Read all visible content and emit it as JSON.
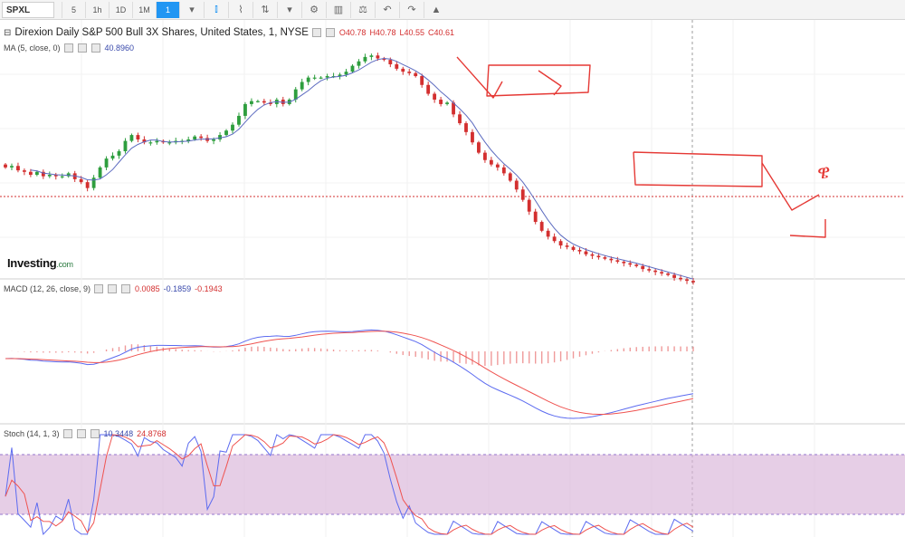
{
  "toolbar": {
    "symbol": "SPXL",
    "intervals": [
      "5",
      "1h",
      "1D",
      "1M",
      "1"
    ],
    "active_interval": "1",
    "icons": [
      "chevron-down-icon",
      "candlestick-icon",
      "area-chart-icon",
      "compare-icon",
      "chevron-down-icon",
      "gear-icon",
      "indicators-icon",
      "balance-icon",
      "undo-icon",
      "redo-icon",
      "bell-icon"
    ]
  },
  "price_legend": {
    "title": "Direxion Daily S&P 500 Bull 3X Shares, United States, 1, NYSE",
    "open": "O40.78",
    "high": "H40.78",
    "low": "L40.55",
    "close": "C40.61",
    "ma_label": "MA (5, close, 0)",
    "ma_value": "40.8960"
  },
  "macd_legend": {
    "label": "MACD (12, 26, close, 9)",
    "hist": "0.0085",
    "macd": "-0.1859",
    "signal": "-0.1943"
  },
  "stoch_legend": {
    "label": "Stoch (14, 1, 3)",
    "k": "10.3448",
    "d": "24.8768"
  },
  "logo": {
    "main": "Investing",
    "suffix": ".com"
  },
  "annotation": {
    "text": "ዌ"
  },
  "colors": {
    "up": "#2e9e3e",
    "down": "#d32f2f",
    "ma": "#5c6bc0",
    "macd_line": "#5c6bf0",
    "signal_line": "#ef5350",
    "hist": "#ef9a9a",
    "stoch_band": "#d8b4d8",
    "annotation": "#e53935",
    "accent": "#2196f3"
  },
  "chart_data": [
    {
      "type": "candlestick",
      "series": [
        {
          "name": "SPXL",
          "close_values": [
            41.02,
            41.03,
            41.0,
            40.99,
            40.97,
            40.99,
            40.96,
            40.97,
            40.96,
            40.96,
            40.98,
            40.94,
            40.92,
            40.88,
            40.95,
            41.02,
            41.08,
            41.1,
            41.13,
            41.2,
            41.24,
            41.21,
            41.19,
            41.19,
            41.2,
            41.19,
            41.19,
            41.2,
            41.2,
            41.21,
            41.23,
            41.22,
            41.2,
            41.21,
            41.24,
            41.27,
            41.31,
            41.37,
            41.45,
            41.47,
            41.47,
            41.46,
            41.45,
            41.48,
            41.45,
            41.48,
            41.55,
            41.6,
            41.63,
            41.63,
            41.63,
            41.64,
            41.64,
            41.65,
            41.67,
            41.71,
            41.74,
            41.77,
            41.78,
            41.76,
            41.75,
            41.72,
            41.69,
            41.67,
            41.66,
            41.64,
            41.58,
            41.52,
            41.48,
            41.45,
            41.46,
            41.38,
            41.32,
            41.26,
            41.19,
            41.12,
            41.07,
            41.04,
            41.02,
            40.98,
            40.93,
            40.87,
            40.8,
            40.72,
            40.65,
            40.59,
            40.55,
            40.52,
            40.49,
            40.48,
            40.46,
            40.45,
            40.43,
            40.42,
            40.41,
            40.4,
            40.39,
            40.38,
            40.37,
            40.36,
            40.35,
            40.33,
            40.32,
            40.31,
            40.3,
            40.29,
            40.27,
            40.26,
            40.25,
            40.24
          ]
        }
      ],
      "ylim": [
        40.3,
        41.8
      ]
    },
    {
      "type": "line",
      "series": [
        {
          "name": "MACD (12, 26, close, 9)"
        }
      ]
    },
    {
      "type": "line",
      "series": [
        {
          "name": "Stoch (14, 1, 3)"
        }
      ],
      "ylim": [
        0,
        100
      ]
    }
  ]
}
